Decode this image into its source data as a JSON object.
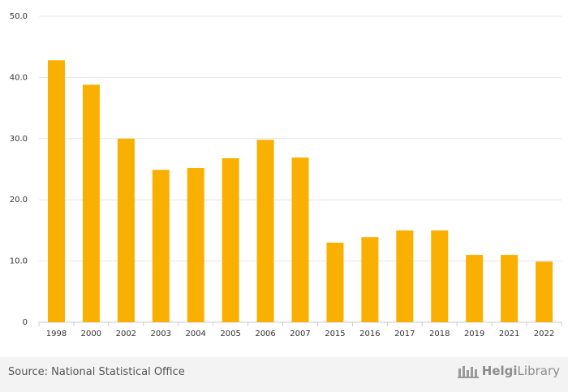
{
  "chart_data": {
    "type": "bar",
    "categories": [
      "1998",
      "2000",
      "2002",
      "2003",
      "2004",
      "2005",
      "2006",
      "2007",
      "2015",
      "2016",
      "2017",
      "2018",
      "2019",
      "2021",
      "2022"
    ],
    "values": [
      42.8,
      38.8,
      30.0,
      24.9,
      25.2,
      26.8,
      29.8,
      26.9,
      13.0,
      13.9,
      15.0,
      15.0,
      11.0,
      11.0,
      9.9
    ],
    "ylim": [
      0,
      50
    ],
    "yticks": [
      {
        "value": 0,
        "label": "0"
      },
      {
        "value": 10,
        "label": "10.0"
      },
      {
        "value": 20,
        "label": "20.0"
      },
      {
        "value": 30,
        "label": "30.0"
      },
      {
        "value": 40,
        "label": "40.0"
      },
      {
        "value": 50,
        "label": "50.0"
      }
    ],
    "grid": true,
    "bar_color": "#f9b000"
  },
  "footer": {
    "source": "Source: National Statistical Office",
    "logo_bold": "Helgi",
    "logo_rest": "Library"
  }
}
